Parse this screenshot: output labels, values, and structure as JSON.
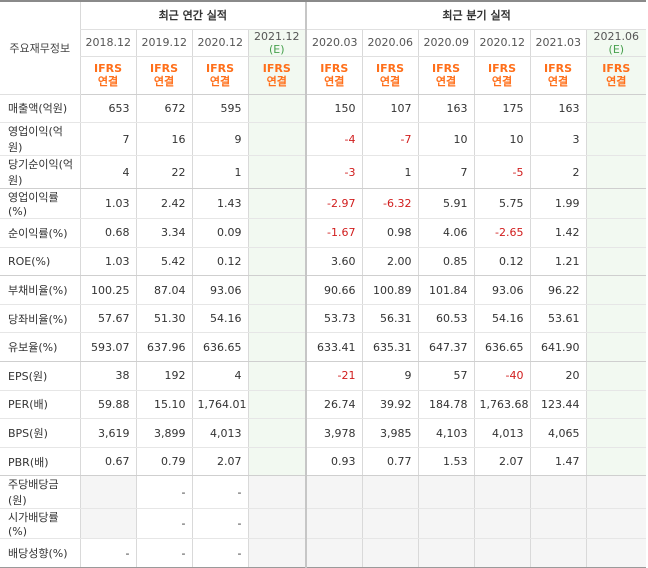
{
  "header": {
    "row_label": "주요재무정보",
    "annual_group": "최근 연간 실적",
    "quarter_group": "최근 분기 실적",
    "periods": [
      {
        "label": "2018.12",
        "est": ""
      },
      {
        "label": "2019.12",
        "est": ""
      },
      {
        "label": "2020.12",
        "est": ""
      },
      {
        "label": "2021.12",
        "est": "(E)"
      },
      {
        "label": "2020.03",
        "est": ""
      },
      {
        "label": "2020.06",
        "est": ""
      },
      {
        "label": "2020.09",
        "est": ""
      },
      {
        "label": "2020.12",
        "est": ""
      },
      {
        "label": "2021.03",
        "est": ""
      },
      {
        "label": "2021.06",
        "est": "(E)"
      }
    ],
    "basis_line1": "IFRS",
    "basis_line2": "연결"
  },
  "rows": [
    {
      "label": "매출액(억원)",
      "values": [
        "653",
        "672",
        "595",
        "",
        "150",
        "107",
        "163",
        "175",
        "163",
        ""
      ]
    },
    {
      "label": "영업이익(억원)",
      "values": [
        "7",
        "16",
        "9",
        "",
        "-4",
        "-7",
        "10",
        "10",
        "3",
        ""
      ]
    },
    {
      "label": "당기순이익(억원)",
      "values": [
        "4",
        "22",
        "1",
        "",
        "-3",
        "1",
        "7",
        "-5",
        "2",
        ""
      ]
    },
    {
      "label": "영업이익률(%)",
      "values": [
        "1.03",
        "2.42",
        "1.43",
        "",
        "-2.97",
        "-6.32",
        "5.91",
        "5.75",
        "1.99",
        ""
      ]
    },
    {
      "label": "순이익률(%)",
      "values": [
        "0.68",
        "3.34",
        "0.09",
        "",
        "-1.67",
        "0.98",
        "4.06",
        "-2.65",
        "1.42",
        ""
      ]
    },
    {
      "label": "ROE(%)",
      "values": [
        "1.03",
        "5.42",
        "0.12",
        "",
        "3.60",
        "2.00",
        "0.85",
        "0.12",
        "1.21",
        ""
      ]
    },
    {
      "label": "부채비율(%)",
      "values": [
        "100.25",
        "87.04",
        "93.06",
        "",
        "90.66",
        "100.89",
        "101.84",
        "93.06",
        "96.22",
        ""
      ]
    },
    {
      "label": "당좌비율(%)",
      "values": [
        "57.67",
        "51.30",
        "54.16",
        "",
        "53.73",
        "56.31",
        "60.53",
        "54.16",
        "53.61",
        ""
      ]
    },
    {
      "label": "유보율(%)",
      "values": [
        "593.07",
        "637.96",
        "636.65",
        "",
        "633.41",
        "635.31",
        "647.37",
        "636.65",
        "641.90",
        ""
      ]
    },
    {
      "label": "EPS(원)",
      "values": [
        "38",
        "192",
        "4",
        "",
        "-21",
        "9",
        "57",
        "-40",
        "20",
        ""
      ]
    },
    {
      "label": "PER(배)",
      "values": [
        "59.88",
        "15.10",
        "1,764.01",
        "",
        "26.74",
        "39.92",
        "184.78",
        "1,763.68",
        "123.44",
        ""
      ]
    },
    {
      "label": "BPS(원)",
      "values": [
        "3,619",
        "3,899",
        "4,013",
        "",
        "3,978",
        "3,985",
        "4,103",
        "4,013",
        "4,065",
        ""
      ]
    },
    {
      "label": "PBR(배)",
      "values": [
        "0.67",
        "0.79",
        "2.07",
        "",
        "0.93",
        "0.77",
        "1.53",
        "2.07",
        "1.47",
        ""
      ]
    },
    {
      "label": "주당배당금(원)",
      "values": [
        "",
        "-",
        "-",
        "",
        "",
        "",
        "",
        "",
        "",
        ""
      ]
    },
    {
      "label": "시가배당률(%)",
      "values": [
        "",
        "-",
        "-",
        "",
        "",
        "",
        "",
        "",
        "",
        ""
      ]
    },
    {
      "label": "배당성향(%)",
      "values": [
        "-",
        "-",
        "-",
        "",
        "",
        "",
        "",
        "",
        "",
        ""
      ]
    }
  ],
  "colors": {
    "negative": "#d11d1d",
    "basis": "#ff6f1a",
    "estimate_bg": "#f2f9f1",
    "estimate_mark": "#47a04d"
  }
}
